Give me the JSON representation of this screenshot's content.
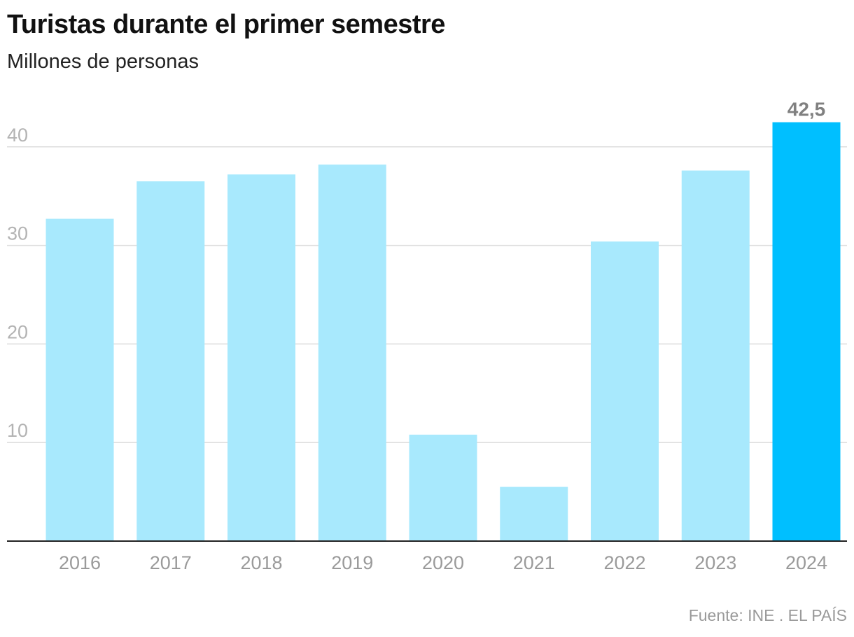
{
  "chart_data": {
    "type": "bar",
    "title": "Turistas durante el primer semestre",
    "subtitle": "Millones de personas",
    "categories": [
      "2016",
      "2017",
      "2018",
      "2019",
      "2020",
      "2021",
      "2022",
      "2023",
      "2024"
    ],
    "values": [
      32.7,
      36.5,
      37.2,
      38.2,
      10.8,
      5.5,
      30.4,
      37.6,
      42.5
    ],
    "yticks": [
      "10",
      "20",
      "30",
      "40"
    ],
    "ylim": [
      0,
      45
    ],
    "grid": true,
    "data_labels": [
      {
        "category": "2024",
        "text": "42,5"
      }
    ],
    "colors": {
      "bar": "#a8e9fd",
      "highlight": "#00bfff",
      "highlight_category": "2024"
    }
  },
  "source": "Fuente: INE . EL PAÍS"
}
